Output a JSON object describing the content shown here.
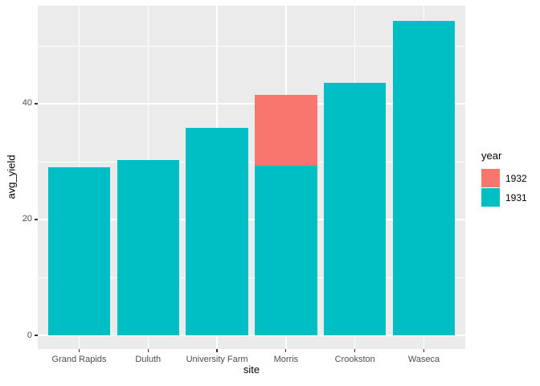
{
  "chart_data": {
    "type": "bar",
    "title": "",
    "xlabel": "site",
    "ylabel": "avg_yield",
    "categories": [
      "Grand Rapids",
      "Duluth",
      "University Farm",
      "Morris",
      "Crookston",
      "Waseca"
    ],
    "series": [
      {
        "name": "1932",
        "color": "#F8766D",
        "values": [
          null,
          null,
          null,
          41.5,
          null,
          null
        ]
      },
      {
        "name": "1931",
        "color": "#00BFC4",
        "values": [
          29.05,
          30.29,
          35.83,
          29.29,
          43.66,
          54.35
        ]
      }
    ],
    "bar_position": "identity",
    "bar_width_fraction": 0.9,
    "yticks": [
      0,
      20,
      40
    ],
    "yticks_minor": [
      10,
      30,
      50
    ],
    "ylim": [
      -2.36,
      56.94
    ],
    "grid": true,
    "legend": {
      "title": "year",
      "position": "right",
      "entries": [
        {
          "label": "1932",
          "color": "#F8766D"
        },
        {
          "label": "1931",
          "color": "#00BFC4"
        }
      ]
    }
  },
  "colors": {
    "panel_background": "#EBEBEB",
    "plot_background": "#FFFFFF",
    "gridline": "#FFFFFF",
    "tick_mark": "#333333",
    "tick_label": "#4D4D4D",
    "axis_title": "#000000",
    "series_1932": "#F8766D",
    "series_1931": "#00BFC4"
  }
}
